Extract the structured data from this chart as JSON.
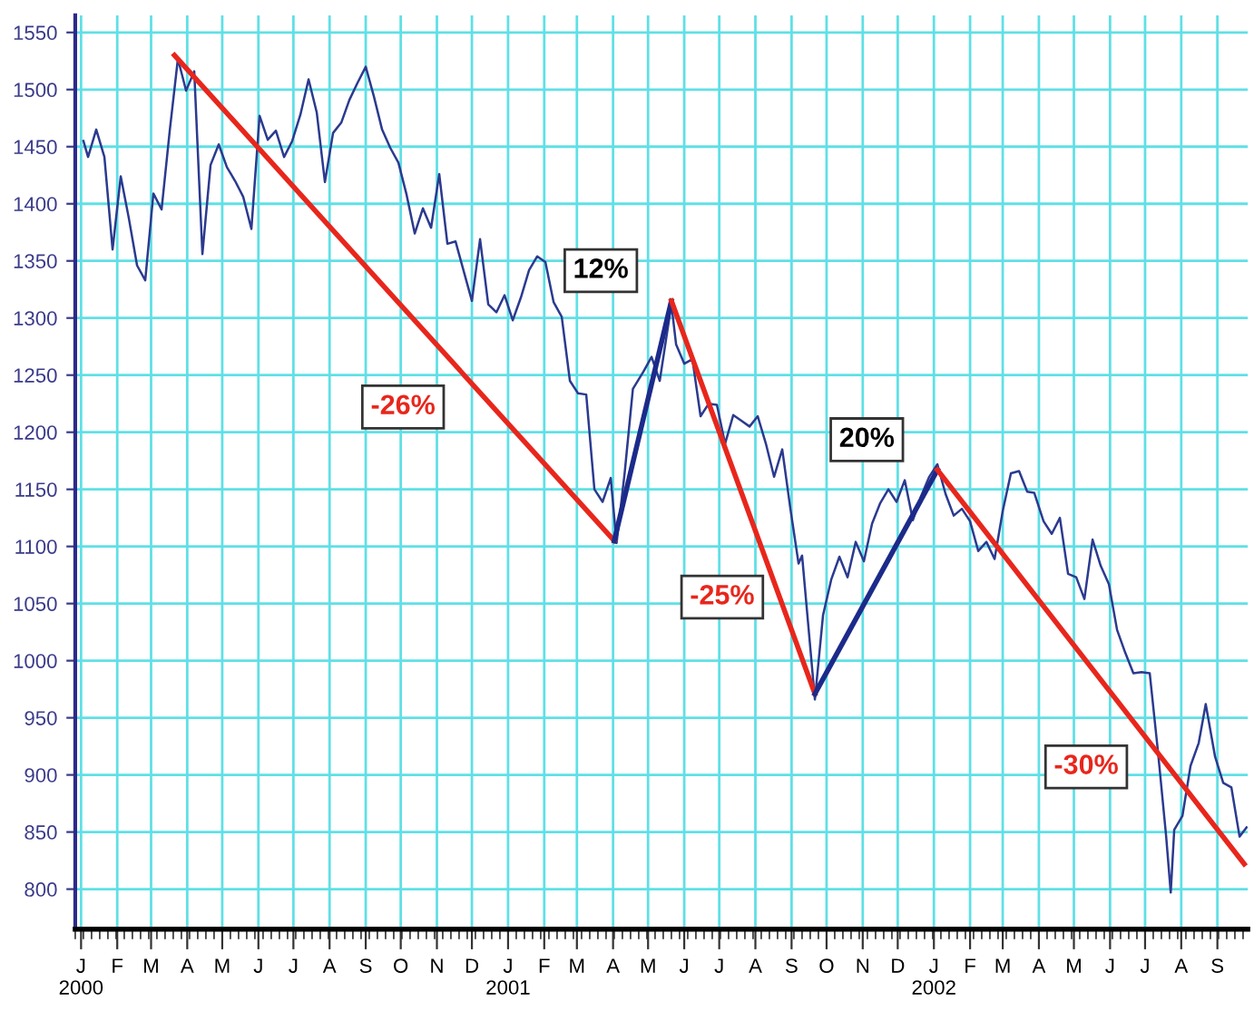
{
  "chart_data": {
    "type": "line",
    "xlim": [
      "1999-12-27",
      "2002-09-27"
    ],
    "ylim": [
      765,
      1565
    ],
    "yticks": [
      800,
      850,
      900,
      950,
      1000,
      1050,
      1100,
      1150,
      1200,
      1250,
      1300,
      1350,
      1400,
      1450,
      1500,
      1550
    ],
    "xticks": [
      {
        "value": "2000-01",
        "label": "J\n2000"
      },
      {
        "value": "2000-02",
        "label": "F"
      },
      {
        "value": "2000-03",
        "label": "M"
      },
      {
        "value": "2000-04",
        "label": "A"
      },
      {
        "value": "2000-05",
        "label": "M"
      },
      {
        "value": "2000-06",
        "label": "J"
      },
      {
        "value": "2000-07",
        "label": "J"
      },
      {
        "value": "2000-08",
        "label": "A"
      },
      {
        "value": "2000-09",
        "label": "S"
      },
      {
        "value": "2000-10",
        "label": "O"
      },
      {
        "value": "2000-11",
        "label": "N"
      },
      {
        "value": "2000-12",
        "label": "D"
      },
      {
        "value": "2001-01",
        "label": "J\n2001"
      },
      {
        "value": "2001-02",
        "label": "F"
      },
      {
        "value": "2001-03",
        "label": "M"
      },
      {
        "value": "2001-04",
        "label": "A"
      },
      {
        "value": "2001-05",
        "label": "M"
      },
      {
        "value": "2001-06",
        "label": "J"
      },
      {
        "value": "2001-07",
        "label": "J"
      },
      {
        "value": "2001-08",
        "label": "A"
      },
      {
        "value": "2001-09",
        "label": "S"
      },
      {
        "value": "2001-10",
        "label": "O"
      },
      {
        "value": "2001-11",
        "label": "N"
      },
      {
        "value": "2001-12",
        "label": "D"
      },
      {
        "value": "2002-01",
        "label": "J\n2002"
      },
      {
        "value": "2002-02",
        "label": "F"
      },
      {
        "value": "2002-03",
        "label": "M"
      },
      {
        "value": "2002-04",
        "label": "A"
      },
      {
        "value": "2002-05",
        "label": "M"
      },
      {
        "value": "2002-06",
        "label": "J"
      },
      {
        "value": "2002-07",
        "label": "J"
      },
      {
        "value": "2002-08",
        "label": "A"
      },
      {
        "value": "2002-09",
        "label": "S"
      }
    ],
    "grid": true,
    "legend": false,
    "series": [
      {
        "color": "#2b3a8f",
        "x": [
          "2000-01-03",
          "2000-01-07",
          "2000-01-14",
          "2000-01-21",
          "2000-01-28",
          "2000-02-04",
          "2000-02-11",
          "2000-02-18",
          "2000-02-25",
          "2000-03-03",
          "2000-03-10",
          "2000-03-17",
          "2000-03-24",
          "2000-03-31",
          "2000-04-07",
          "2000-04-14",
          "2000-04-21",
          "2000-04-28",
          "2000-05-05",
          "2000-05-12",
          "2000-05-19",
          "2000-05-26",
          "2000-06-02",
          "2000-06-09",
          "2000-06-16",
          "2000-06-23",
          "2000-06-30",
          "2000-07-07",
          "2000-07-14",
          "2000-07-21",
          "2000-07-28",
          "2000-08-04",
          "2000-08-11",
          "2000-08-18",
          "2000-08-25",
          "2000-09-01",
          "2000-09-08",
          "2000-09-15",
          "2000-09-22",
          "2000-09-29",
          "2000-10-06",
          "2000-10-13",
          "2000-10-20",
          "2000-10-27",
          "2000-11-03",
          "2000-11-10",
          "2000-11-17",
          "2000-11-24",
          "2000-12-01",
          "2000-12-08",
          "2000-12-15",
          "2000-12-22",
          "2000-12-29",
          "2001-01-05",
          "2001-01-12",
          "2001-01-19",
          "2001-01-26",
          "2001-02-02",
          "2001-02-09",
          "2001-02-16",
          "2001-02-23",
          "2001-03-02",
          "2001-03-09",
          "2001-03-16",
          "2001-03-23",
          "2001-03-30",
          "2001-04-04",
          "2001-04-11",
          "2001-04-18",
          "2001-04-27",
          "2001-05-04",
          "2001-05-11",
          "2001-05-21",
          "2001-05-25",
          "2001-06-01",
          "2001-06-08",
          "2001-06-15",
          "2001-06-22",
          "2001-06-29",
          "2001-07-06",
          "2001-07-13",
          "2001-07-20",
          "2001-07-27",
          "2001-08-03",
          "2001-08-10",
          "2001-08-17",
          "2001-08-24",
          "2001-08-31",
          "2001-09-07",
          "2001-09-10",
          "2001-09-21",
          "2001-09-28",
          "2001-10-05",
          "2001-10-12",
          "2001-10-19",
          "2001-10-26",
          "2001-11-02",
          "2001-11-09",
          "2001-11-16",
          "2001-11-23",
          "2001-11-30",
          "2001-12-07",
          "2001-12-14",
          "2001-12-21",
          "2001-12-28",
          "2002-01-04",
          "2002-01-11",
          "2002-01-18",
          "2002-01-25",
          "2002-02-01",
          "2002-02-08",
          "2002-02-15",
          "2002-02-22",
          "2002-03-01",
          "2002-03-08",
          "2002-03-15",
          "2002-03-22",
          "2002-03-28",
          "2002-04-05",
          "2002-04-12",
          "2002-04-19",
          "2002-04-26",
          "2002-05-03",
          "2002-05-10",
          "2002-05-17",
          "2002-05-24",
          "2002-05-31",
          "2002-06-07",
          "2002-06-14",
          "2002-06-21",
          "2002-06-28",
          "2002-07-05",
          "2002-07-12",
          "2002-07-19",
          "2002-07-23",
          "2002-07-26",
          "2002-08-02",
          "2002-08-09",
          "2002-08-16",
          "2002-08-22",
          "2002-08-30",
          "2002-09-06",
          "2002-09-13",
          "2002-09-20",
          "2002-09-26"
        ],
        "values": [
          1455,
          1441,
          1465,
          1441,
          1360,
          1424,
          1387,
          1346,
          1333,
          1409,
          1395,
          1464,
          1527,
          1499,
          1516,
          1356,
          1434,
          1452,
          1432,
          1420,
          1406,
          1378,
          1477,
          1456,
          1464,
          1441,
          1455,
          1478,
          1509,
          1480,
          1419,
          1462,
          1471,
          1491,
          1506,
          1520,
          1494,
          1465,
          1449,
          1436,
          1408,
          1374,
          1396,
          1379,
          1426,
          1365,
          1367,
          1341,
          1315,
          1369,
          1312,
          1305,
          1320,
          1298,
          1318,
          1342,
          1354,
          1349,
          1314,
          1301,
          1245,
          1234,
          1233,
          1150,
          1139,
          1160,
          1103,
          1165,
          1238,
          1253,
          1266,
          1245,
          1312,
          1277,
          1260,
          1264,
          1214,
          1225,
          1224,
          1190,
          1215,
          1210,
          1205,
          1214,
          1190,
          1161,
          1185,
          1133,
          1085,
          1092,
          966,
          1040,
          1071,
          1091,
          1073,
          1104,
          1087,
          1120,
          1138,
          1150,
          1139,
          1158,
          1123,
          1144,
          1161,
          1172,
          1146,
          1127,
          1133,
          1122,
          1096,
          1104,
          1089,
          1131,
          1164,
          1166,
          1148,
          1147,
          1122,
          1111,
          1125,
          1076,
          1073,
          1054,
          1106,
          1083,
          1067,
          1027,
          1007,
          989,
          990,
          989,
          921,
          847,
          797,
          852,
          864,
          908,
          928,
          962,
          916,
          893,
          889,
          846,
          854
        ]
      },
      {
        "color": "#e8261c",
        "x": [
          "2000-03-21",
          "2001-04-02"
        ],
        "values": [
          1530,
          1105
        ]
      },
      {
        "color": "#1c2a8a",
        "x": [
          "2001-04-02",
          "2001-05-21"
        ],
        "values": [
          1105,
          1315
        ]
      },
      {
        "color": "#e8261c",
        "x": [
          "2001-05-21",
          "2001-09-21"
        ],
        "values": [
          1315,
          971
        ]
      },
      {
        "color": "#1c2a8a",
        "x": [
          "2001-09-21",
          "2002-01-04"
        ],
        "values": [
          971,
          1167
        ]
      },
      {
        "color": "#e8261c",
        "x": [
          "2002-01-04",
          "2002-09-24"
        ],
        "values": [
          1167,
          822
        ]
      }
    ],
    "annotations": [
      "-26%",
      "12%",
      "-25%",
      "20%",
      "-30%"
    ]
  }
}
